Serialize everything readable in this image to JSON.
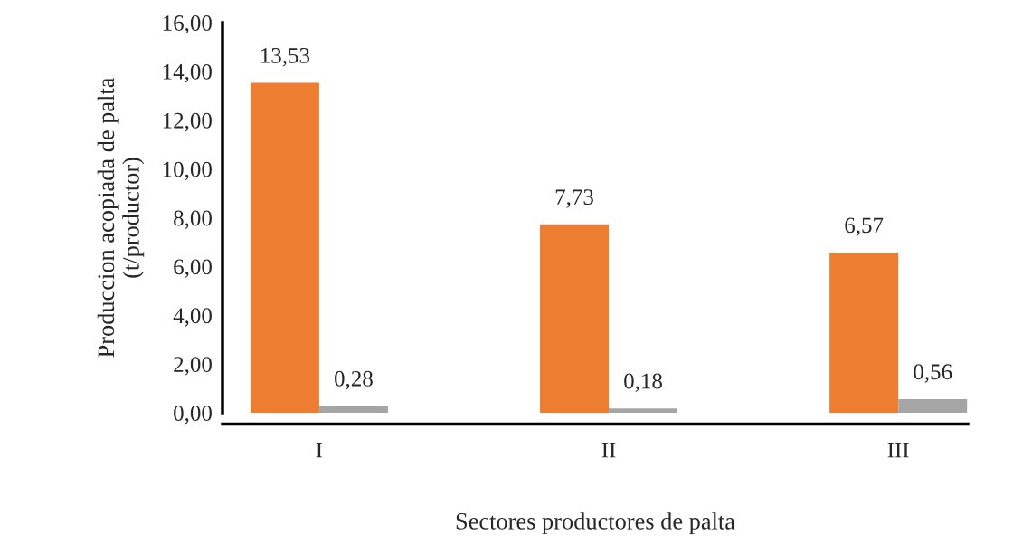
{
  "chart_data": {
    "type": "bar",
    "xlabel": "Sectores productores de palta",
    "ylabel": "Produccion acopiada de palta\n(t/productor)",
    "categories": [
      "I",
      "II",
      "III"
    ],
    "series": [
      {
        "color": "#ed7d31",
        "values": [
          13.53,
          7.73,
          6.57
        ],
        "value_labels": [
          "13,53",
          "7,73",
          "6,57"
        ]
      },
      {
        "color": "#a5a5a5",
        "values": [
          0.28,
          0.18,
          0.56
        ],
        "value_labels": [
          "0,28",
          "0,18",
          "0,56"
        ]
      }
    ],
    "ylim": [
      0,
      16
    ],
    "yticks": [
      {
        "value": 0,
        "label": "0,00"
      },
      {
        "value": 2,
        "label": "2,00"
      },
      {
        "value": 4,
        "label": "4,00"
      },
      {
        "value": 6,
        "label": "6,00"
      },
      {
        "value": 8,
        "label": "8,00"
      },
      {
        "value": 10,
        "label": "10,00"
      },
      {
        "value": 12,
        "label": "12,00"
      },
      {
        "value": 14,
        "label": "14,00"
      },
      {
        "value": 16,
        "label": "16,00"
      }
    ],
    "grid": false,
    "legend": false
  }
}
